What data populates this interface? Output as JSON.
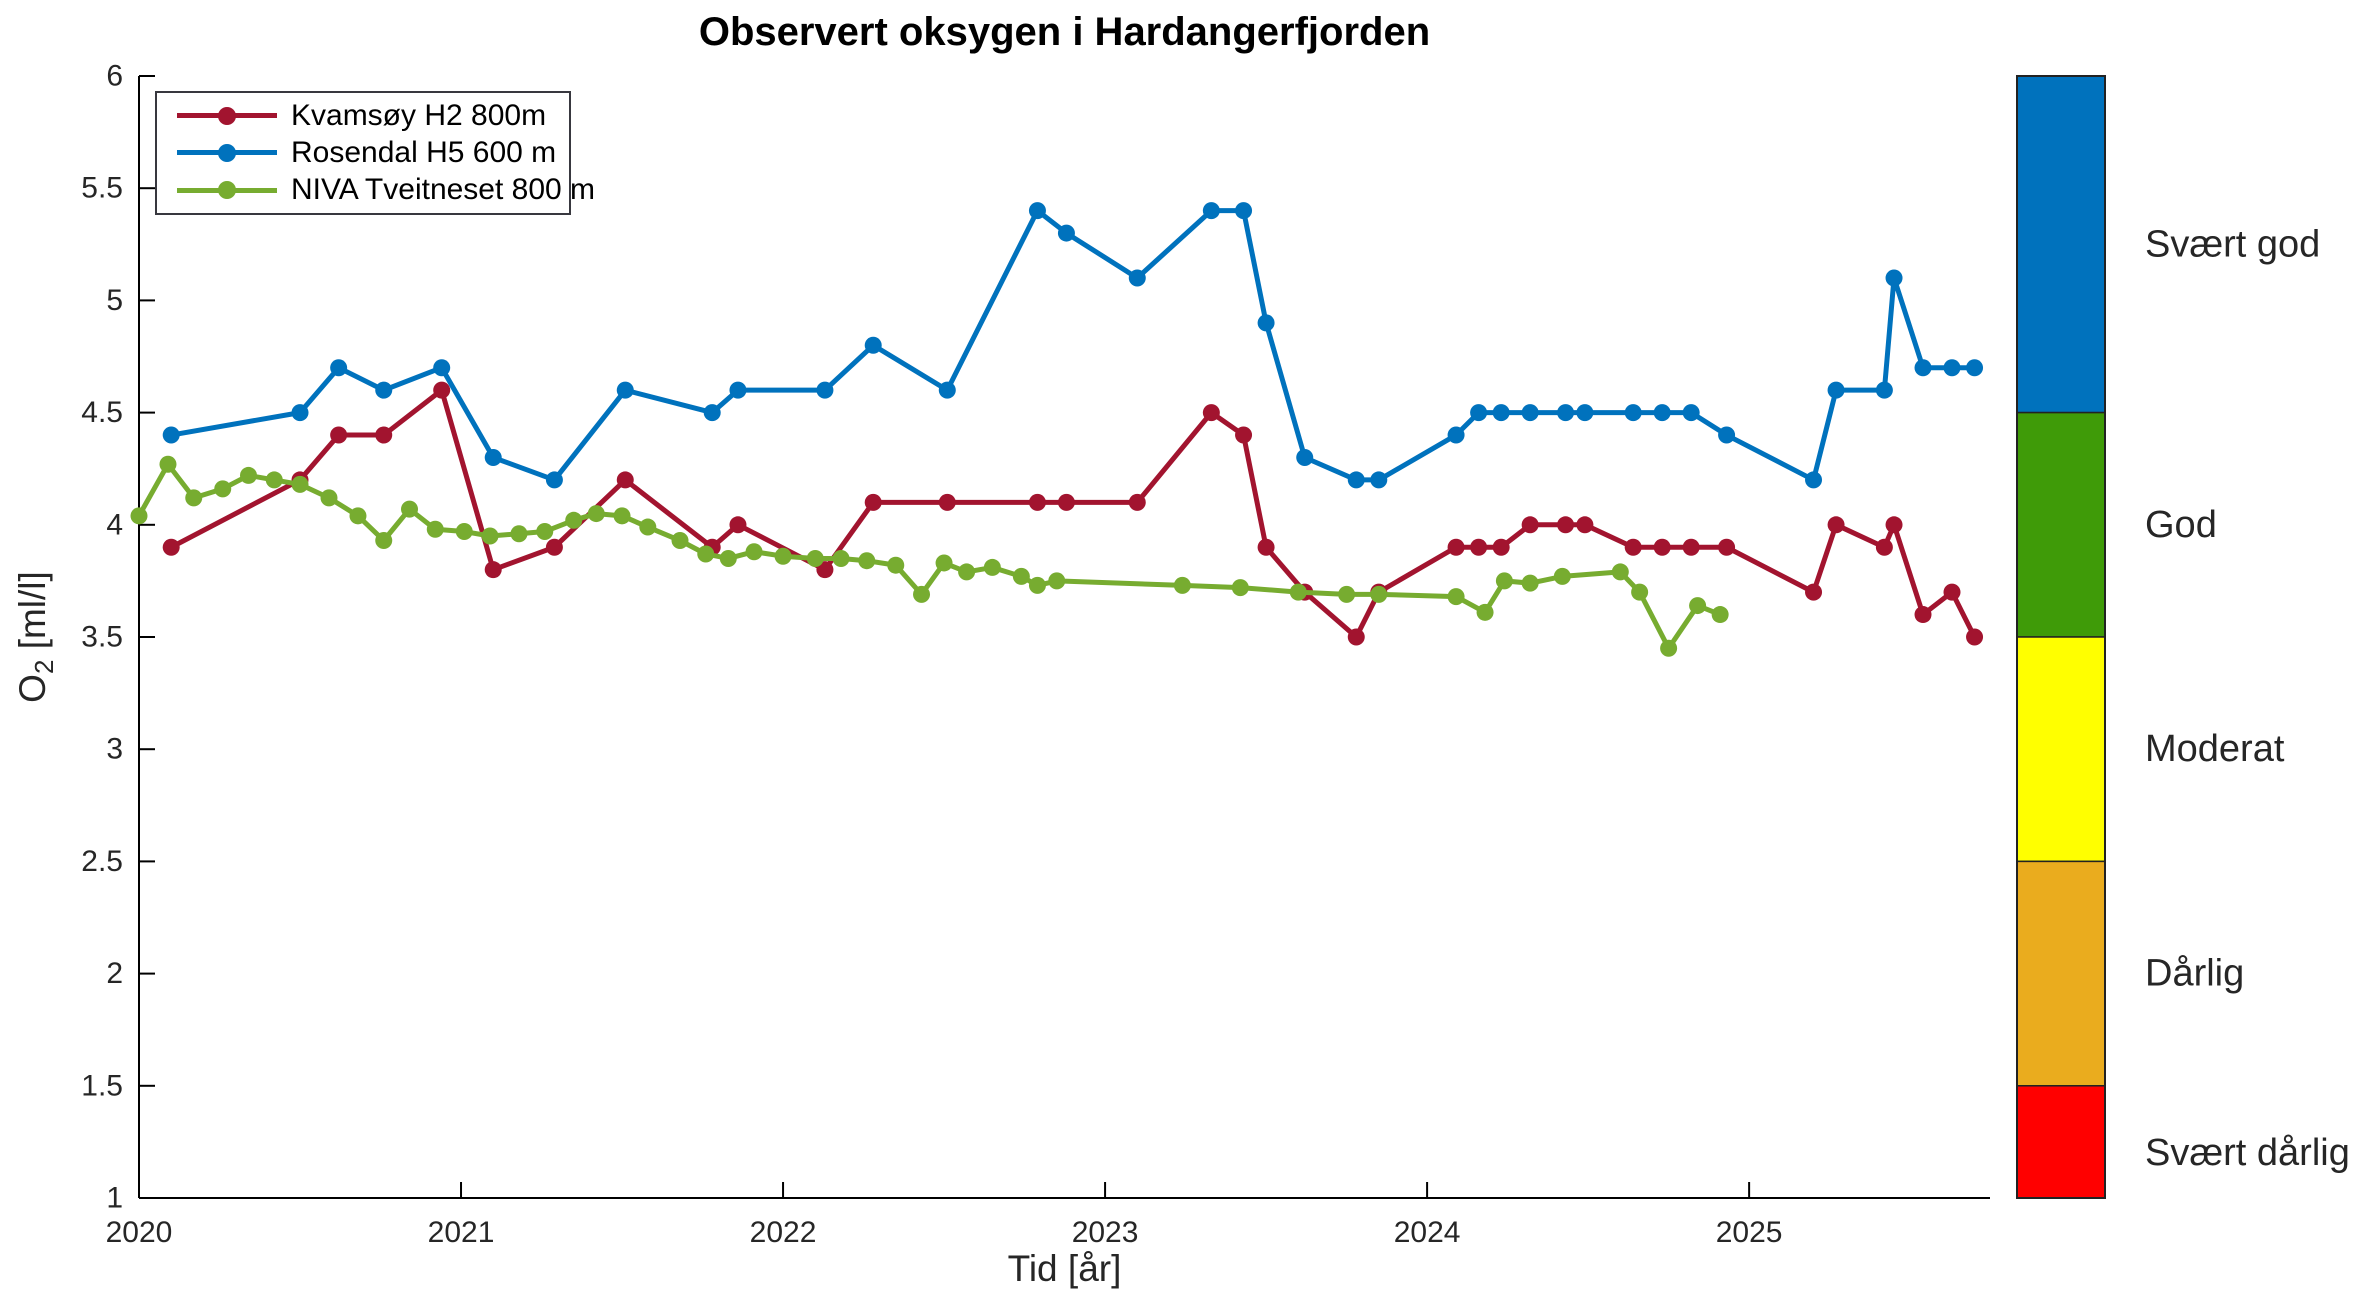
{
  "figure_title": "Observert oksygen i Hardangerfjorden",
  "chart_data": {
    "type": "line",
    "title": "Observert oksygen i Hardangerfjorden",
    "xlabel": "Tid [år]",
    "ylabel": "O_2 [ml/l]",
    "ylabel_parts": {
      "element": "O",
      "subscript": "2",
      "units": " [ml/l]"
    },
    "xlim": [
      2020,
      2025.748
    ],
    "ylim": [
      1,
      6
    ],
    "grid": false,
    "legend_position": "top-left",
    "xticks": [
      2020,
      2021,
      2022,
      2023,
      2024,
      2025
    ],
    "xtick_labels": [
      "2020",
      "2021",
      "2022",
      "2023",
      "2024",
      "2025"
    ],
    "yticks": [
      1,
      1.5,
      2,
      2.5,
      3,
      3.5,
      4,
      4.5,
      5,
      5.5,
      6
    ],
    "ytick_labels": [
      "1",
      "1.5",
      "2",
      "2.5",
      "3",
      "3.5",
      "4",
      "4.5",
      "5",
      "5.5",
      "6"
    ],
    "axis_text_color": "#262626",
    "axis_line_color": "#000000",
    "series": [
      {
        "name": "Kvamsøy H2 800m",
        "color": "#A2142F",
        "x": [
          2020.1,
          2020.5,
          2020.62,
          2020.76,
          2020.94,
          2021.1,
          2021.29,
          2021.51,
          2021.78,
          2021.86,
          2022.13,
          2022.28,
          2022.51,
          2022.79,
          2022.88,
          2023.1,
          2023.33,
          2023.43,
          2023.5,
          2023.62,
          2023.78,
          2023.85,
          2024.09,
          2024.16,
          2024.23,
          2024.32,
          2024.43,
          2024.49,
          2024.64,
          2024.73,
          2024.82,
          2024.93,
          2025.2,
          2025.27,
          2025.42,
          2025.45,
          2025.54,
          2025.63,
          2025.7
        ],
        "y": [
          3.9,
          4.2,
          4.4,
          4.4,
          4.6,
          3.8,
          3.9,
          4.2,
          3.9,
          4.0,
          3.8,
          4.1,
          4.1,
          4.1,
          4.1,
          4.1,
          4.5,
          4.4,
          3.9,
          3.7,
          3.5,
          3.7,
          3.9,
          3.9,
          3.9,
          4.0,
          4.0,
          4.0,
          3.9,
          3.9,
          3.9,
          3.9,
          3.7,
          4.0,
          3.9,
          4.0,
          3.6,
          3.7,
          3.5
        ]
      },
      {
        "name": "Rosendal H5 600 m",
        "color": "#0072BD",
        "x": [
          2020.1,
          2020.5,
          2020.62,
          2020.76,
          2020.94,
          2021.1,
          2021.29,
          2021.51,
          2021.78,
          2021.86,
          2022.13,
          2022.28,
          2022.51,
          2022.79,
          2022.88,
          2023.1,
          2023.33,
          2023.43,
          2023.5,
          2023.62,
          2023.78,
          2023.85,
          2024.09,
          2024.16,
          2024.23,
          2024.32,
          2024.43,
          2024.49,
          2024.64,
          2024.73,
          2024.82,
          2024.93,
          2025.2,
          2025.27,
          2025.42,
          2025.45,
          2025.54,
          2025.63,
          2025.7
        ],
        "y": [
          4.4,
          4.5,
          4.7,
          4.6,
          4.7,
          4.3,
          4.2,
          4.6,
          4.5,
          4.6,
          4.6,
          4.8,
          4.6,
          5.4,
          5.3,
          5.1,
          5.4,
          5.4,
          4.9,
          4.3,
          4.2,
          4.2,
          4.4,
          4.5,
          4.5,
          4.5,
          4.5,
          4.5,
          4.5,
          4.5,
          4.5,
          4.4,
          4.2,
          4.6,
          4.6,
          5.1,
          4.7,
          4.7,
          4.7
        ]
      },
      {
        "name": "NIVA Tveitneset 800 m",
        "color": "#77AC30",
        "x": [
          2020.0,
          2020.09,
          2020.17,
          2020.26,
          2020.34,
          2020.42,
          2020.5,
          2020.59,
          2020.68,
          2020.76,
          2020.84,
          2020.92,
          2021.01,
          2021.09,
          2021.18,
          2021.26,
          2021.35,
          2021.42,
          2021.5,
          2021.58,
          2021.68,
          2021.76,
          2021.83,
          2021.91,
          2022.0,
          2022.1,
          2022.18,
          2022.26,
          2022.35,
          2022.43,
          2022.5,
          2022.57,
          2022.65,
          2022.74,
          2022.79,
          2022.85,
          2023.24,
          2023.42,
          2023.6,
          2023.75,
          2023.85,
          2024.09,
          2024.18,
          2024.24,
          2024.32,
          2024.42,
          2024.6,
          2024.66,
          2024.75,
          2024.84,
          2024.91
        ],
        "y": [
          4.04,
          4.27,
          4.12,
          4.16,
          4.22,
          4.2,
          4.18,
          4.12,
          4.04,
          3.93,
          4.07,
          3.98,
          3.97,
          3.95,
          3.96,
          3.97,
          4.02,
          4.05,
          4.04,
          3.99,
          3.93,
          3.87,
          3.85,
          3.88,
          3.86,
          3.85,
          3.85,
          3.84,
          3.82,
          3.69,
          3.83,
          3.79,
          3.81,
          3.77,
          3.73,
          3.75,
          3.73,
          3.72,
          3.7,
          3.69,
          3.69,
          3.68,
          3.61,
          3.75,
          3.74,
          3.77,
          3.79,
          3.7,
          3.45,
          3.64,
          3.6
        ]
      }
    ],
    "colorbar": {
      "segments": [
        {
          "label": "Svært god",
          "color": "#0072BD",
          "from": 4.5,
          "to": 6.0,
          "label_at": 5.25
        },
        {
          "label": "God",
          "color": "#3F9B08",
          "from": 3.5,
          "to": 4.5,
          "label_at": 4.0
        },
        {
          "label": "Moderat",
          "color": "#FFFF00",
          "from": 2.5,
          "to": 3.5,
          "label_at": 3.0
        },
        {
          "label": "Dårlig",
          "color": "#EAAC1E",
          "from": 1.5,
          "to": 2.5,
          "label_at": 2.0
        },
        {
          "label": "Svært dårlig",
          "color": "#FF0000",
          "from": 1.0,
          "to": 1.5,
          "label_at": 1.2
        }
      ]
    }
  },
  "legend": {
    "items": [
      {
        "label": "Kvamsøy H2 800m"
      },
      {
        "label": "Rosendal H5 600 m"
      },
      {
        "label": "NIVA Tveitneset 800 m"
      }
    ]
  }
}
